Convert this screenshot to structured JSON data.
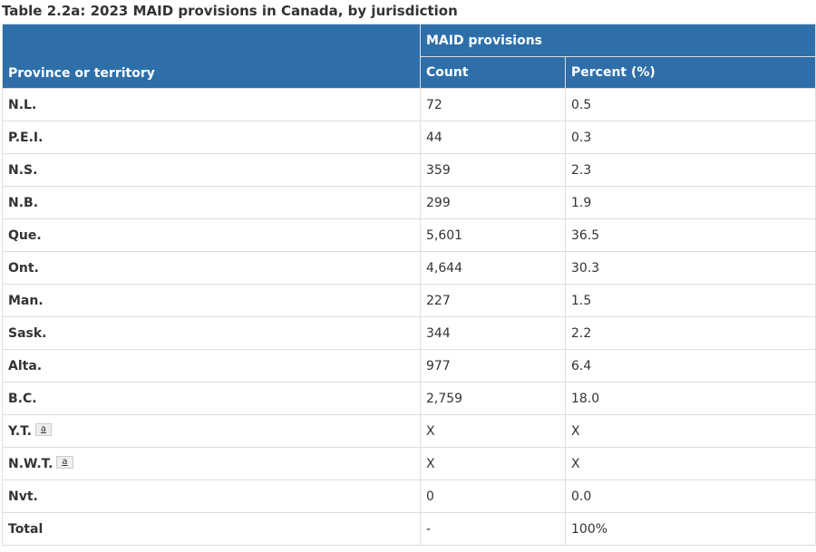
{
  "caption": "Table 2.2a: 2023 MAID provisions in Canada, by jurisdiction",
  "headers": {
    "province": "Province or territory",
    "group": "MAID provisions",
    "count": "Count",
    "percent": "Percent (%)"
  },
  "rows": [
    {
      "name": "N.L.",
      "count": "72",
      "percent": "0.5"
    },
    {
      "name": "P.E.I.",
      "count": "44",
      "percent": "0.3"
    },
    {
      "name": "N.S.",
      "count": "359",
      "percent": "2.3"
    },
    {
      "name": "N.B.",
      "count": "299",
      "percent": "1.9"
    },
    {
      "name": "Que.",
      "count": "5,601",
      "percent": "36.5"
    },
    {
      "name": "Ont.",
      "count": "4,644",
      "percent": "30.3"
    },
    {
      "name": "Man.",
      "count": "227",
      "percent": "1.5"
    },
    {
      "name": "Sask.",
      "count": "344",
      "percent": "2.2"
    },
    {
      "name": "Alta.",
      "count": "977",
      "percent": "6.4"
    },
    {
      "name": "B.C.",
      "count": "2,759",
      "percent": "18.0"
    },
    {
      "name": "Y.T.",
      "footnote": "a",
      "count": "X",
      "percent": "X"
    },
    {
      "name": "N.W.T.",
      "footnote": "a",
      "count": "X",
      "percent": "X"
    },
    {
      "name": "Nvt.",
      "count": "0",
      "percent": "0.0"
    },
    {
      "name": "Total",
      "count": "-",
      "percent": "100%"
    }
  ],
  "colors": {
    "header_bg": "#2e6faa",
    "header_text": "#ffffff",
    "border": "#dddddd"
  }
}
